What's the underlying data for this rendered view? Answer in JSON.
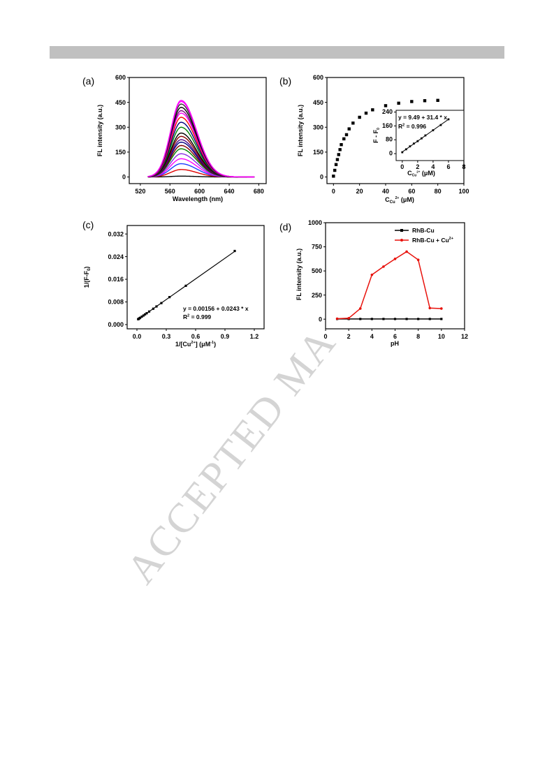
{
  "header_bar": {
    "color": "#c0c0c0"
  },
  "watermark": {
    "text": "ACCEPTED MA"
  },
  "chart_data": [
    {
      "panel": "(a)",
      "type": "line",
      "xlabel": "Wavelength (nm)",
      "ylabel": "FL intensity (a.u.)",
      "xlim": [
        505,
        690
      ],
      "ylim": [
        -40,
        600
      ],
      "xticks": [
        520,
        560,
        600,
        640,
        680
      ],
      "yticks": [
        0,
        150,
        300,
        450,
        600
      ],
      "peak_wavelength": 575,
      "curve_range": [
        530,
        675
      ],
      "series": [
        {
          "peak": 5,
          "color": "#000000"
        },
        {
          "peak": 45,
          "color": "#e00000"
        },
        {
          "peak": 80,
          "color": "#1a3cff"
        },
        {
          "peak": 110,
          "color": "#ff00ff"
        },
        {
          "peak": 140,
          "color": "#8a2be2"
        },
        {
          "peak": 170,
          "color": "#008000"
        },
        {
          "peak": 190,
          "color": "#800000"
        },
        {
          "peak": 210,
          "color": "#000080"
        },
        {
          "peak": 225,
          "color": "#4b0082"
        },
        {
          "peak": 245,
          "color": "#8b0000"
        },
        {
          "peak": 265,
          "color": "#000000"
        },
        {
          "peak": 300,
          "color": "#008000"
        },
        {
          "peak": 330,
          "color": "#000080"
        },
        {
          "peak": 360,
          "color": "#ff0000"
        },
        {
          "peak": 385,
          "color": "#ff00ff"
        },
        {
          "peak": 400,
          "color": "#800080"
        },
        {
          "peak": 420,
          "color": "#000000"
        },
        {
          "peak": 440,
          "color": "#2f2f2f"
        },
        {
          "peak": 455,
          "color": "#ff00ff"
        },
        {
          "peak": 462,
          "color": "#ff00ff"
        }
      ]
    },
    {
      "panel": "(b)",
      "type": "scatter",
      "xlabel": "C",
      "xlabel_sub": "Cu",
      "xlabel_sup": "2+",
      "xlabel_unit": " (μM)",
      "ylabel": "FL intensity (a.u.)",
      "xlim": [
        -5,
        100
      ],
      "ylim": [
        -40,
        600
      ],
      "xticks": [
        0,
        20,
        40,
        60,
        80,
        100
      ],
      "yticks": [
        0,
        150,
        300,
        450,
        600
      ],
      "x": [
        0,
        1,
        2,
        3,
        4,
        5,
        6,
        8,
        10,
        12,
        15,
        20,
        25,
        30,
        40,
        50,
        60,
        70,
        80
      ],
      "y": [
        5,
        40,
        75,
        105,
        135,
        165,
        195,
        230,
        255,
        290,
        325,
        360,
        385,
        405,
        430,
        445,
        455,
        460,
        462
      ],
      "inset": {
        "type": "scatter",
        "xlabel": "C",
        "xlabel_sub": "Cu",
        "xlabel_sup": "2+",
        "xlabel_unit": " (μM)",
        "ylabel": "F - F",
        "ylabel_sub": "0",
        "xlim": [
          -0.8,
          8
        ],
        "ylim": [
          -40,
          250
        ],
        "xticks": [
          0,
          2,
          4,
          6,
          8
        ],
        "yticks": [
          0,
          80,
          160,
          240
        ],
        "x": [
          0,
          0.5,
          1,
          1.5,
          2,
          2.5,
          3,
          4,
          5,
          6
        ],
        "y": [
          8,
          25,
          42,
          58,
          72,
          88,
          105,
          135,
          165,
          198
        ],
        "fit": {
          "intercept": 9.49,
          "slope": 31.4
        },
        "equation": "y = 9.49 + 31.4 * x",
        "r2_label": "R",
        "r2_sup": "2",
        "r2_value": " = 0.996"
      }
    },
    {
      "panel": "(c)",
      "type": "scatter",
      "xlabel": "1/[Cu",
      "xlabel_sup": "2+",
      "xlabel_mid": "] (μM",
      "xlabel_sup2": "-1",
      "xlabel_end": ")",
      "ylabel": "1/(F-F",
      "ylabel_sub": "0",
      "ylabel_end": ")",
      "xlim": [
        -0.1,
        1.3
      ],
      "ylim": [
        -0.0015,
        0.035
      ],
      "xticks": [
        0.0,
        0.3,
        0.6,
        0.9,
        1.2
      ],
      "xtick_labels": [
        "0.0",
        "0.3",
        "0.6",
        "0.9",
        "1.2"
      ],
      "yticks": [
        0.0,
        0.008,
        0.016,
        0.024,
        0.032
      ],
      "ytick_labels": [
        "0.000",
        "0.008",
        "0.016",
        "0.024",
        "0.032"
      ],
      "x": [
        0.0125,
        0.0167,
        0.025,
        0.033,
        0.05,
        0.067,
        0.083,
        0.1,
        0.125,
        0.167,
        0.2,
        0.25,
        0.333,
        0.5,
        1.0
      ],
      "y": [
        0.0019,
        0.002,
        0.0022,
        0.0024,
        0.0028,
        0.0032,
        0.0036,
        0.004,
        0.0046,
        0.0056,
        0.0064,
        0.0076,
        0.0097,
        0.0137,
        0.026
      ],
      "fit": {
        "intercept": 0.00156,
        "slope": 0.0243
      },
      "equation": "y = 0.00156 + 0.0243 * x",
      "r2_label": "R",
      "r2_sup": "2",
      "r2_value": " = 0.999"
    },
    {
      "panel": "(d)",
      "type": "line",
      "xlabel": "pH",
      "ylabel": "FL intensity (a.u.)",
      "xlim": [
        0,
        12
      ],
      "ylim": [
        -100,
        1000
      ],
      "xticks": [
        0,
        2,
        4,
        6,
        8,
        10,
        12
      ],
      "yticks": [
        0,
        250,
        500,
        750,
        1000
      ],
      "series": [
        {
          "name": "RhB-Cu",
          "color": "#000000",
          "x": [
            1,
            2,
            3,
            4,
            5,
            6,
            7,
            8,
            9,
            10
          ],
          "y": [
            2,
            2,
            2,
            2,
            2,
            2,
            2,
            2,
            2,
            2
          ]
        },
        {
          "name": "RhB-Cu + Cu",
          "name_sup": "2+",
          "color": "#e8120c",
          "x": [
            1,
            2,
            3,
            4,
            5,
            6,
            7,
            8,
            9,
            10
          ],
          "y": [
            5,
            10,
            110,
            460,
            545,
            625,
            700,
            615,
            115,
            110
          ]
        }
      ]
    }
  ]
}
